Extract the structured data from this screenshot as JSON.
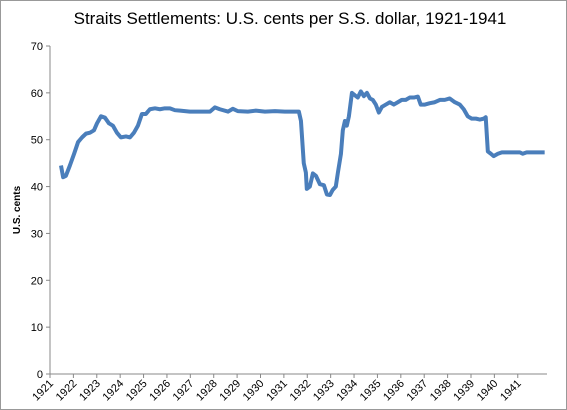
{
  "chart_data": {
    "type": "line",
    "title": "Straits Settlements: U.S. cents per S.S. dollar, 1921-1941",
    "y_label": "U.S. cents",
    "x": [
      1921.47,
      1921.56,
      1921.68,
      1921.85,
      1922.03,
      1922.2,
      1922.37,
      1922.54,
      1922.71,
      1922.88,
      1923.01,
      1923.18,
      1923.35,
      1923.52,
      1923.69,
      1923.86,
      1924.03,
      1924.25,
      1924.42,
      1924.59,
      1924.76,
      1924.93,
      1925.1,
      1925.27,
      1925.49,
      1925.7,
      1925.91,
      1926.13,
      1926.34,
      1926.56,
      1926.98,
      1927.41,
      1927.84,
      1928.05,
      1928.26,
      1928.61,
      1928.82,
      1929.03,
      1929.46,
      1929.8,
      1930.19,
      1930.62,
      1931.04,
      1931.47,
      1931.64,
      1931.73,
      1931.85,
      1931.94,
      1931.98,
      1932.11,
      1932.24,
      1932.37,
      1932.54,
      1932.71,
      1932.84,
      1932.97,
      1933.09,
      1933.22,
      1933.31,
      1933.44,
      1933.52,
      1933.61,
      1933.69,
      1933.78,
      1933.91,
      1934.03,
      1934.16,
      1934.29,
      1934.42,
      1934.55,
      1934.68,
      1934.8,
      1934.93,
      1935.06,
      1935.19,
      1935.36,
      1935.53,
      1935.7,
      1935.87,
      1936.04,
      1936.21,
      1936.38,
      1936.56,
      1936.73,
      1936.85,
      1937.03,
      1937.24,
      1937.45,
      1937.67,
      1937.88,
      1938.09,
      1938.31,
      1938.52,
      1938.69,
      1938.86,
      1939.03,
      1939.21,
      1939.38,
      1939.55,
      1939.63,
      1939.72,
      1939.85,
      1939.97,
      1940.15,
      1940.32,
      1940.66,
      1941.09,
      1941.21,
      1941.38,
      1941.73,
      1942.15
    ],
    "series": [
      {
        "name": "U.S. cents per S.S. dollar",
        "color": "#4a7ebb",
        "values": [
          44.5,
          42,
          42.3,
          44.5,
          47,
          49.5,
          50.5,
          51.3,
          51.5,
          52,
          53.5,
          55,
          54.7,
          53.5,
          53,
          51.5,
          50.5,
          50.7,
          50.5,
          51.5,
          53,
          55.5,
          55.5,
          56.5,
          56.7,
          56.5,
          56.7,
          56.7,
          56.3,
          56.2,
          56,
          56,
          56,
          56.9,
          56.5,
          56,
          56.6,
          56.1,
          56,
          56.2,
          56,
          56.1,
          56,
          56,
          56,
          54,
          45,
          43,
          39.5,
          40,
          42.8,
          42.3,
          40.5,
          40.3,
          38.3,
          38.2,
          39.3,
          40,
          43,
          47,
          52,
          54,
          53,
          55,
          60,
          59.5,
          59,
          60.3,
          59.3,
          60,
          58.8,
          58.5,
          57.5,
          55.8,
          57,
          57.5,
          58,
          57.5,
          58,
          58.5,
          58.5,
          59,
          59,
          59.2,
          57.5,
          57.5,
          57.8,
          58,
          58.5,
          58.5,
          58.8,
          58,
          57.5,
          56.5,
          55,
          54.5,
          54.5,
          54.3,
          54.5,
          54.8,
          47.5,
          47,
          46.5,
          47,
          47.3,
          47.3,
          47.3,
          47,
          47.3,
          47.3,
          47.3
        ]
      }
    ],
    "xlim": [
      1921,
      1942.25
    ],
    "xticks": [
      1921,
      1922,
      1923,
      1924,
      1925,
      1926,
      1927,
      1928,
      1929,
      1930,
      1931,
      1932,
      1933,
      1934,
      1935,
      1936,
      1937,
      1938,
      1939,
      1940,
      1941
    ],
    "ylim": [
      0,
      70
    ],
    "yticks": [
      0,
      10,
      20,
      30,
      40,
      50,
      60,
      70
    ],
    "grid": false
  }
}
